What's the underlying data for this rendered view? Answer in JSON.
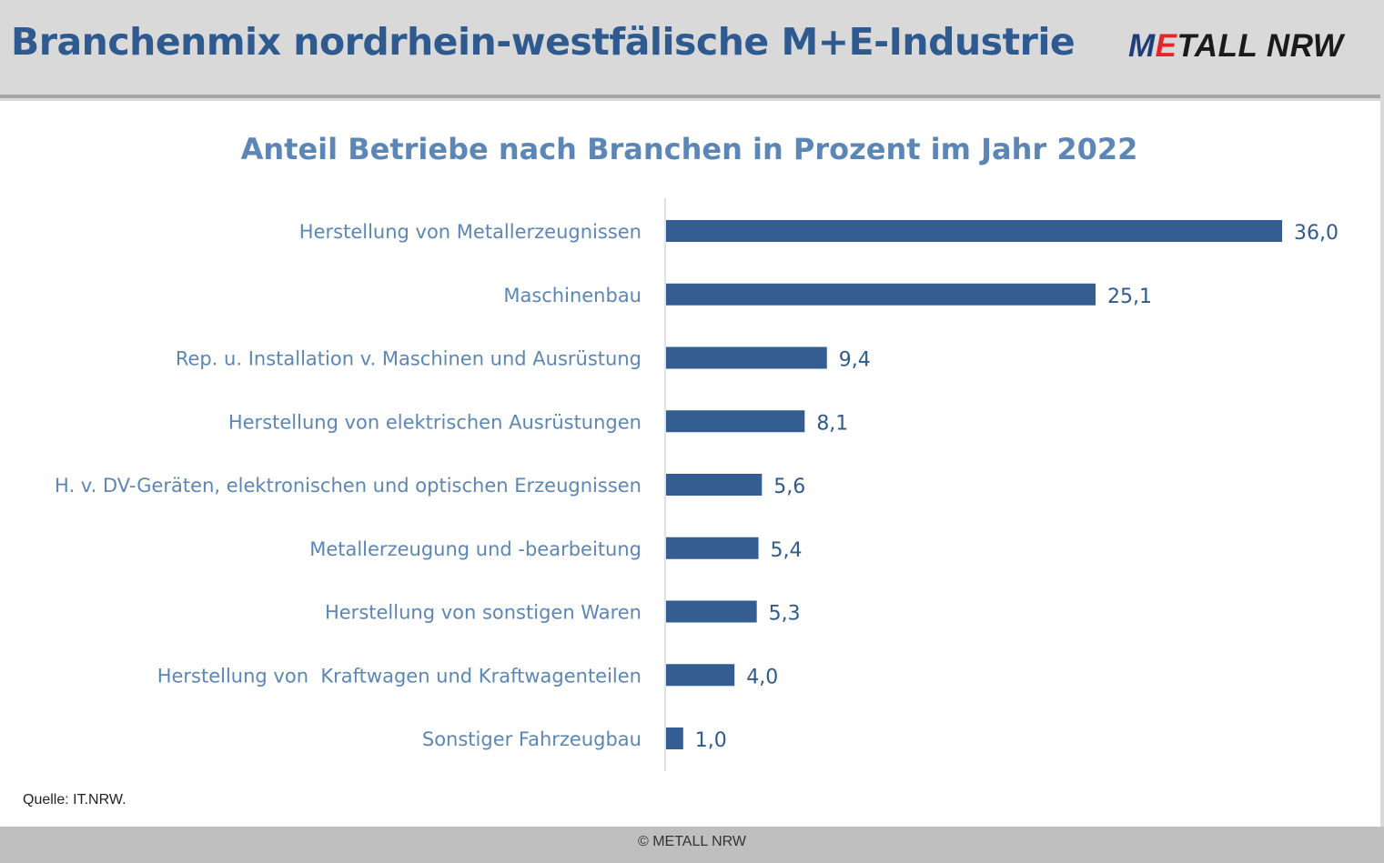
{
  "header": {
    "title": "Branchenmix nordrhein-westfälische M+E-Industrie",
    "logo": {
      "part1": "M",
      "part2": "E",
      "part3": "TALL NRW"
    }
  },
  "colors": {
    "bar": "#345d92",
    "category_label": "#5b86b6",
    "value_label": "#2f5a8f",
    "axis": "#d0d8e0"
  },
  "chart_data": {
    "type": "bar",
    "orientation": "horizontal",
    "title": "Anteil Betriebe nach Branchen in Prozent im Jahr 2022",
    "categories": [
      "Herstellung von Metallerzeugnissen",
      "Maschinenbau",
      "Rep. u. Installation v. Maschinen und Ausrüstung",
      "Herstellung von elektrischen Ausrüstungen",
      "H. v. DV-Geräten, elektronischen und optischen Erzeugnissen",
      "Metallerzeugung und -bearbeitung",
      "Herstellung von sonstigen Waren",
      "Herstellung von  Kraftwagen und Kraftwagenteilen",
      "Sonstiger Fahrzeugbau"
    ],
    "values": [
      36.0,
      25.1,
      9.4,
      8.1,
      5.6,
      5.4,
      5.3,
      4.0,
      1.0
    ],
    "value_labels": [
      "36,0",
      "25,1",
      "9,4",
      "8,1",
      "5,6",
      "5,4",
      "5,3",
      "4,0",
      "1,0"
    ],
    "xlim": [
      0,
      36
    ],
    "grid": false,
    "legend": "none"
  },
  "source": "Quelle: IT.NRW.",
  "footer": "© METALL NRW"
}
